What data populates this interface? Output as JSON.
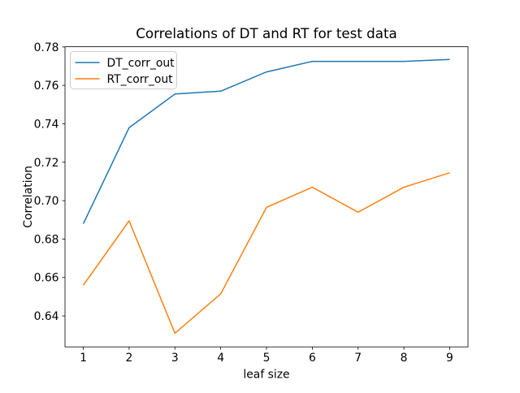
{
  "chart_data": {
    "type": "line",
    "title": "Correlations of DT and RT for test data",
    "xlabel": "leaf size",
    "ylabel": "Correlation",
    "x": [
      1,
      2,
      3,
      4,
      5,
      6,
      7,
      8,
      9
    ],
    "series": [
      {
        "name": "DT_corr_out",
        "color": "#1f77b4",
        "values": [
          0.688,
          0.738,
          0.7555,
          0.757,
          0.767,
          0.7725,
          0.7725,
          0.7725,
          0.7735
        ]
      },
      {
        "name": "RT_corr_out",
        "color": "#ff7f0e",
        "values": [
          0.656,
          0.6895,
          0.631,
          0.6515,
          0.6965,
          0.707,
          0.694,
          0.707,
          0.7145
        ]
      }
    ],
    "xlim": [
      0.6,
      9.4
    ],
    "ylim": [
      0.6239,
      0.7801
    ],
    "xticks": [
      1,
      2,
      3,
      4,
      5,
      6,
      7,
      8,
      9
    ],
    "xtick_labels": [
      "1",
      "2",
      "3",
      "4",
      "5",
      "6",
      "7",
      "8",
      "9"
    ],
    "yticks": [
      0.64,
      0.66,
      0.68,
      0.7,
      0.72,
      0.74,
      0.76,
      0.78
    ],
    "ytick_labels": [
      "0.64",
      "0.66",
      "0.68",
      "0.70",
      "0.72",
      "0.74",
      "0.76",
      "0.78"
    ],
    "grid": false,
    "legend": {
      "position": "upper left",
      "entries": [
        "DT_corr_out",
        "RT_corr_out"
      ]
    },
    "colors": {
      "background": "#ffffff",
      "axes_edge": "#000000",
      "text": "#000000",
      "legend_edge": "#cccccc"
    }
  }
}
